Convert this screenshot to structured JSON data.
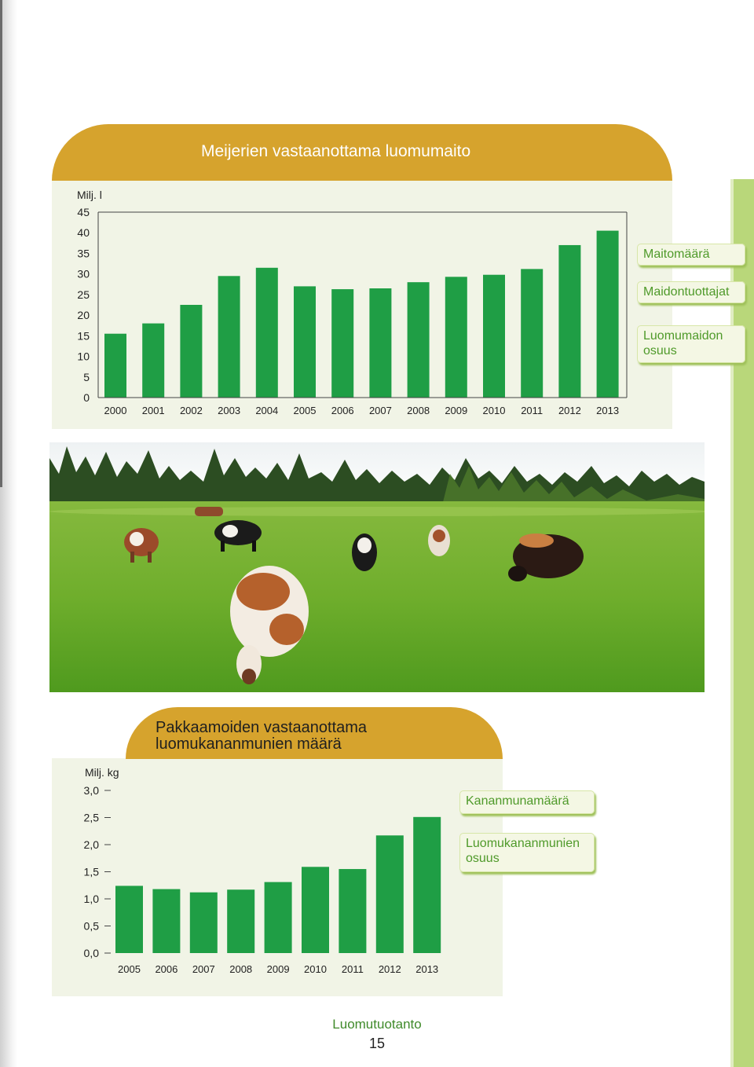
{
  "chart_data": [
    {
      "type": "bar",
      "title": "Meijerien vastaanottama luomumaito",
      "ylabel": "Milj. l",
      "categories": [
        "2000",
        "2001",
        "2002",
        "2003",
        "2004",
        "2005",
        "2006",
        "2007",
        "2008",
        "2009",
        "2010",
        "2011",
        "2012",
        "2013"
      ],
      "values": [
        15.5,
        18.0,
        22.5,
        29.5,
        31.5,
        27.0,
        26.3,
        26.5,
        28.0,
        29.3,
        29.8,
        31.2,
        37.0,
        40.5
      ],
      "yticks": [
        "0",
        "5",
        "10",
        "15",
        "20",
        "25",
        "30",
        "35",
        "40",
        "45"
      ],
      "ylim": [
        0,
        45
      ],
      "grid": false,
      "bar_color": "#1f9e45"
    },
    {
      "type": "bar",
      "title": "Pakkaamoiden vastaanottama luomukananmunien määrä",
      "ylabel": "Milj. kg",
      "categories": [
        "2005",
        "2006",
        "2007",
        "2008",
        "2009",
        "2010",
        "2011",
        "2012",
        "2013"
      ],
      "values": [
        1.24,
        1.18,
        1.12,
        1.17,
        1.31,
        1.59,
        1.55,
        2.17,
        2.51
      ],
      "yticks": [
        "0,0",
        "0,5",
        "1,0",
        "1,5",
        "2,0",
        "2,5",
        "3,0"
      ],
      "ylim": [
        0,
        3.0
      ],
      "grid": false,
      "bar_color": "#1f9e45"
    }
  ],
  "sidebar_top": {
    "buttons": [
      "Maitomäärä",
      "Maidontuottajat"
    ],
    "button_multi": [
      "Luomumaidon",
      "osuus"
    ]
  },
  "sidebar_bottom": {
    "button": "Kananmunamäärä",
    "button_multi": [
      "Luomukananmunien",
      "osuus"
    ]
  },
  "footer": {
    "section": "Luomutuotanto",
    "page": "15"
  },
  "colors": {
    "tab": "#d6a32d",
    "panel": "#f1f4e6",
    "bar": "#1f9e45",
    "button_text": "#4f9a2a"
  }
}
